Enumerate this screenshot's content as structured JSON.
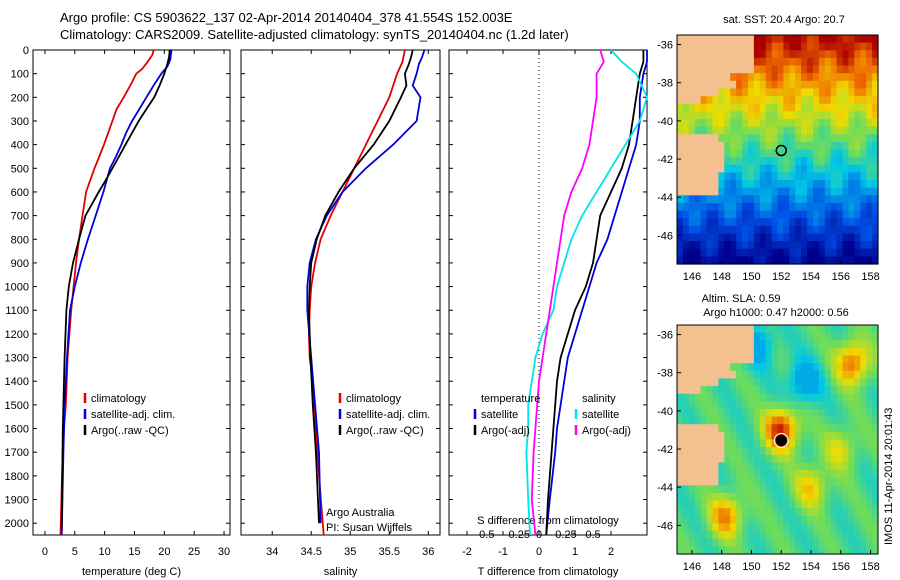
{
  "header": {
    "line1": "Argo profile: CS 5903622_137 02-Apr-2014 20140404_378 41.554S 152.003E",
    "line2": "Climatology: CARS2009. Satellite-adjusted climatology: synTS_20140404.nc (1.2d later)"
  },
  "colors": {
    "climatology": "#e00000",
    "satellite": "#0000dd",
    "argo": "#000000",
    "argo_s": "#ff00ff",
    "satellite_s": "#00e5e5",
    "land": "#f4c090"
  },
  "chart_data": [
    {
      "type": "line",
      "xlabel": "temperature (deg C)",
      "ylabel": "",
      "xlim": [
        -2,
        31
      ],
      "ylim": [
        0,
        2050
      ],
      "y_inverted": true,
      "xticks": [
        0,
        5,
        10,
        15,
        20,
        25,
        30
      ],
      "yticks": [
        0,
        100,
        200,
        300,
        400,
        500,
        600,
        700,
        800,
        900,
        1000,
        1100,
        1200,
        1300,
        1400,
        1500,
        1600,
        1700,
        1800,
        1900,
        2000
      ],
      "grid": false,
      "legend": {
        "placement": "lower-center",
        "entries": [
          "climatology",
          "satellite-adj. clim.",
          "Argo(..raw -QC)"
        ]
      },
      "series": [
        {
          "name": "climatology",
          "color_key": "climatology",
          "x": [
            18.2,
            18.0,
            17.2,
            16.3,
            15.3,
            14.3,
            13.2,
            12.0,
            11.3,
            10.6,
            9.9,
            9.1,
            8.3,
            7.6,
            6.9,
            6.3,
            5.7,
            5.2,
            4.4,
            3.8,
            3.5,
            3.2,
            3.0,
            2.8,
            2.6
          ],
          "y": [
            0,
            20,
            50,
            80,
            100,
            150,
            200,
            250,
            300,
            350,
            400,
            450,
            500,
            550,
            600,
            700,
            800,
            900,
            1100,
            1300,
            1500,
            1600,
            1700,
            1850,
            2050
          ]
        },
        {
          "name": "satellite-adj. clim.",
          "color_key": "satellite",
          "x": [
            21.2,
            21.0,
            20.5,
            19.5,
            18.2,
            17.0,
            15.8,
            14.6,
            13.6,
            12.8,
            11.9,
            10.9,
            9.8,
            8.5,
            7.2,
            6.0,
            5.0,
            4.2,
            3.7,
            3.3,
            3.1,
            2.8
          ],
          "y": [
            0,
            40,
            70,
            100,
            150,
            200,
            250,
            300,
            350,
            400,
            450,
            500,
            600,
            700,
            800,
            900,
            1000,
            1100,
            1300,
            1500,
            1700,
            2050
          ]
        },
        {
          "name": "Argo(..raw -QC)",
          "color_key": "argo",
          "x": [
            20.9,
            20.8,
            20.5,
            20.0,
            19.2,
            18.3,
            17.0,
            15.7,
            14.6,
            13.5,
            12.4,
            11.3,
            10.2,
            9.0,
            7.9,
            6.8,
            5.7,
            4.7,
            4.0,
            3.6,
            3.3,
            3.0,
            2.8
          ],
          "y": [
            0,
            30,
            60,
            100,
            150,
            200,
            250,
            300,
            350,
            400,
            450,
            500,
            550,
            600,
            650,
            700,
            800,
            900,
            1000,
            1100,
            1300,
            1600,
            2030
          ]
        }
      ]
    },
    {
      "type": "line",
      "xlabel": "salinity",
      "xlim": [
        33.6,
        36.15
      ],
      "ylim": [
        0,
        2050
      ],
      "y_inverted": true,
      "xticks": [
        34,
        34.5,
        35,
        35.5,
        36
      ],
      "grid": false,
      "legend": {
        "placement": "lower-right",
        "entries": [
          "climatology",
          "satellite-adj. clim.",
          "Argo(..raw -QC)"
        ]
      },
      "annotation": [
        "Argo Australia",
        "PI: Susan Wijffels"
      ],
      "series": [
        {
          "name": "climatology",
          "color_key": "climatology",
          "x": [
            35.7,
            35.67,
            35.6,
            35.5,
            35.35,
            35.2,
            35.05,
            34.9,
            34.75,
            34.62,
            34.55,
            34.5,
            34.48,
            34.47,
            34.48,
            34.52,
            34.56,
            34.6,
            34.66
          ],
          "y": [
            0,
            50,
            100,
            200,
            300,
            400,
            500,
            600,
            700,
            800,
            900,
            1000,
            1100,
            1200,
            1300,
            1400,
            1600,
            1800,
            2050
          ]
        },
        {
          "name": "satellite-adj. clim.",
          "color_key": "satellite",
          "x": [
            35.95,
            35.92,
            35.88,
            35.85,
            35.8,
            35.9,
            35.85,
            35.55,
            35.2,
            34.9,
            34.7,
            34.56,
            34.48,
            34.45,
            34.45,
            34.5,
            34.55,
            34.6,
            34.62
          ],
          "y": [
            0,
            30,
            60,
            100,
            150,
            200,
            300,
            400,
            500,
            600,
            700,
            800,
            900,
            1000,
            1100,
            1300,
            1500,
            1700,
            2000
          ]
        },
        {
          "name": "Argo(..raw -QC)",
          "color_key": "argo",
          "x": [
            35.8,
            35.78,
            35.75,
            35.7,
            35.72,
            35.65,
            35.5,
            35.3,
            35.05,
            34.85,
            34.68,
            34.57,
            34.5,
            34.48,
            34.47,
            34.49,
            34.52,
            34.56,
            34.6
          ],
          "y": [
            0,
            30,
            60,
            100,
            150,
            200,
            300,
            400,
            500,
            600,
            700,
            800,
            900,
            1000,
            1100,
            1300,
            1500,
            1700,
            2000
          ]
        }
      ]
    },
    {
      "type": "line",
      "xlabel": "T difference from climatology",
      "xlabel_top": "S difference from climatology",
      "xlim": [
        -2.5,
        3.0
      ],
      "ylim": [
        0,
        2050
      ],
      "y_inverted": true,
      "xticks_T": [
        -2,
        -1,
        0,
        1,
        2
      ],
      "xticks_S": [
        "-0.5",
        "-0.25",
        "0",
        "0.25",
        "0.5"
      ],
      "zero_line": "dotted",
      "legend": {
        "placement": "lower",
        "headings": [
          "temperature",
          "salinity"
        ],
        "entries_T": [
          "satellite",
          "Argo(-adj)"
        ],
        "entries_S": [
          "satellite",
          "Argo(-adj)"
        ]
      },
      "series": [
        {
          "name": "satellite",
          "group": "temperature",
          "color_key": "satellite",
          "x": [
            3.0,
            3.0,
            2.9,
            2.8,
            2.8,
            2.7,
            2.5,
            2.3,
            2.1,
            1.9,
            1.6,
            1.4,
            1.2,
            1.0,
            0.8,
            0.7,
            0.6,
            0.5,
            0.45,
            0.3,
            0.2
          ],
          "y": [
            0,
            50,
            100,
            200,
            300,
            400,
            500,
            600,
            700,
            800,
            900,
            1000,
            1100,
            1200,
            1300,
            1400,
            1500,
            1600,
            1700,
            1900,
            2050
          ]
        },
        {
          "name": "Argo(-adj)",
          "group": "temperature",
          "color_key": "argo",
          "x": [
            2.9,
            2.9,
            2.8,
            2.7,
            2.6,
            2.5,
            2.3,
            2.0,
            1.7,
            1.6,
            1.5,
            1.3,
            1.0,
            0.8,
            0.6,
            0.5,
            0.45,
            0.4,
            0.35,
            0.25,
            0.2
          ],
          "y": [
            0,
            50,
            100,
            200,
            300,
            400,
            500,
            600,
            700,
            800,
            900,
            1000,
            1100,
            1200,
            1300,
            1400,
            1500,
            1600,
            1700,
            1900,
            2050
          ]
        },
        {
          "name": "satellite",
          "group": "salinity",
          "color_key": "satellite_s",
          "x": [
            2.0,
            2.3,
            2.7,
            3.0,
            2.8,
            2.4,
            2.0,
            1.6,
            1.2,
            0.9,
            0.7,
            0.5,
            0.4,
            0.1,
            -0.1,
            -0.2,
            -0.3,
            -0.3,
            -0.35,
            -0.3,
            -0.25
          ],
          "y": [
            0,
            50,
            100,
            200,
            300,
            400,
            500,
            600,
            700,
            800,
            900,
            1000,
            1100,
            1200,
            1300,
            1400,
            1500,
            1600,
            1700,
            1900,
            2050
          ]
        },
        {
          "name": "Argo(-adj)",
          "group": "salinity",
          "color_key": "argo_s",
          "x": [
            1.7,
            1.8,
            1.6,
            1.6,
            1.5,
            1.4,
            1.2,
            0.9,
            0.7,
            0.6,
            0.5,
            0.4,
            0.3,
            0.2,
            0.1,
            0.0,
            -0.05,
            -0.1,
            -0.15,
            -0.2,
            -0.1
          ],
          "y": [
            0,
            50,
            100,
            200,
            300,
            400,
            500,
            600,
            700,
            800,
            900,
            1000,
            1100,
            1200,
            1300,
            1400,
            1500,
            1600,
            1700,
            1900,
            2050
          ]
        }
      ]
    },
    {
      "type": "heatmap",
      "title": "sat. SST: 20.4  Argo: 20.7",
      "xlim": [
        145,
        158.5
      ],
      "ylim": [
        -47.5,
        -35.5
      ],
      "xticks": [
        146,
        148,
        150,
        152,
        154,
        156,
        158
      ],
      "yticks": [
        -36,
        -38,
        -40,
        -42,
        -44,
        -46
      ],
      "marker": {
        "lon": 152.003,
        "lat": -41.554,
        "fill": "none"
      }
    },
    {
      "type": "heatmap",
      "title": "Altim. SLA: 0.59",
      "subtitle": "Argo h1000: 0.47 h2000: 0.56",
      "xlim": [
        145,
        158.5
      ],
      "ylim": [
        -47.5,
        -35.5
      ],
      "xticks": [
        146,
        148,
        150,
        152,
        154,
        156,
        158
      ],
      "yticks": [
        -36,
        -38,
        -40,
        -42,
        -44,
        -46
      ],
      "marker": {
        "lon": 152.003,
        "lat": -41.554,
        "fill": "black"
      }
    }
  ],
  "watermark": "IMOS 11-Apr-2014 20:01:43"
}
